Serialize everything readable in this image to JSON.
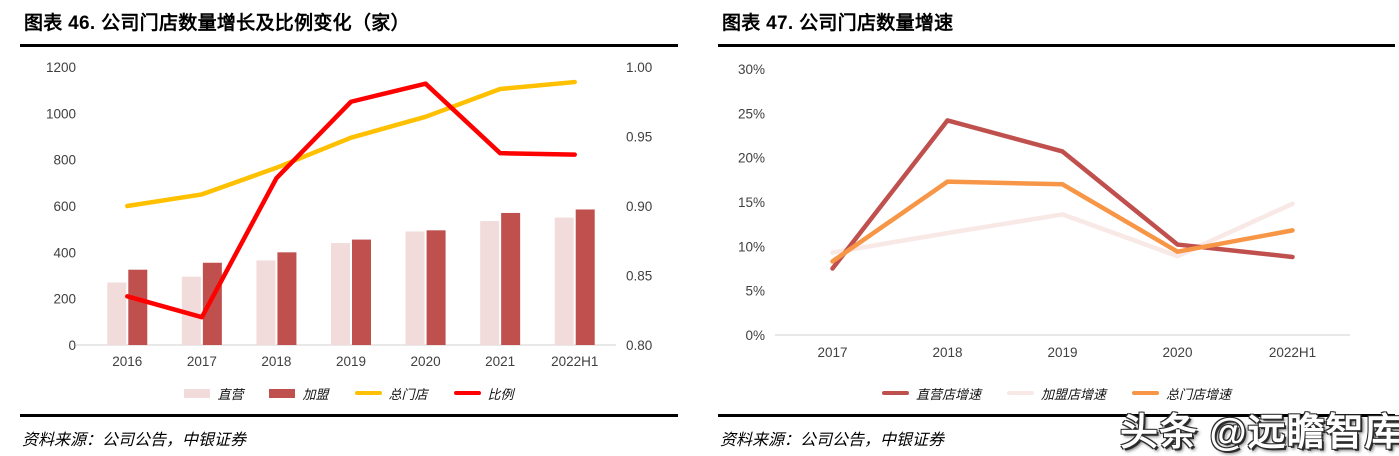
{
  "watermark": "头条 @远瞻智库",
  "chart_data": [
    {
      "id": "fig46",
      "type": "combo_bar_line",
      "title": "图表 46. 公司门店数量增长及比例变化（家）",
      "source": "资料来源：公司公告，中银证券",
      "grid": false,
      "legend_position": "bottom",
      "categories": [
        "2016",
        "2017",
        "2018",
        "2019",
        "2020",
        "2021",
        "2022H1"
      ],
      "bar_series": [
        {
          "name": "直营",
          "color": "#f2dcdb",
          "values": [
            270,
            295,
            365,
            440,
            490,
            535,
            550
          ]
        },
        {
          "name": "加盟",
          "color": "#c0504d",
          "values": [
            325,
            355,
            400,
            455,
            495,
            570,
            585
          ]
        }
      ],
      "line_series": [
        {
          "name": "总门店",
          "color": "#ffc000",
          "axis": "left",
          "values": [
            600,
            650,
            765,
            895,
            985,
            1105,
            1135
          ]
        },
        {
          "name": "比例",
          "color": "#ff0000",
          "axis": "right",
          "values": [
            0.835,
            0.82,
            0.92,
            0.975,
            0.988,
            0.938,
            0.937
          ]
        }
      ],
      "left_axis": {
        "min": 0,
        "max": 1200,
        "tick_values": [
          0,
          200,
          400,
          600,
          800,
          1000,
          1200
        ],
        "tick_labels": [
          "0",
          "200",
          "400",
          "600",
          "800",
          "1000",
          "1200"
        ]
      },
      "right_axis": {
        "min": 0.8,
        "max": 1.0,
        "tick_values": [
          0.8,
          0.85,
          0.9,
          0.95,
          1.0
        ],
        "tick_labels": [
          "0.80",
          "0.85",
          "0.90",
          "0.95",
          "1.00"
        ]
      }
    },
    {
      "id": "fig47",
      "type": "line",
      "title": "图表 47. 公司门店数量增速",
      "source": "资料来源：公司公告，中银证券",
      "grid": false,
      "legend_position": "bottom",
      "categories": [
        "2017",
        "2018",
        "2019",
        "2020",
        "2022H1"
      ],
      "series": [
        {
          "name": "直营店增速",
          "color": "#c0504d",
          "values": [
            7.5,
            24.2,
            20.7,
            10.2,
            8.8
          ]
        },
        {
          "name": "加盟店增速",
          "color": "#f8e8e6",
          "values": [
            9.3,
            11.5,
            13.6,
            8.9,
            14.8
          ]
        },
        {
          "name": "总门店增速",
          "color": "#f79646",
          "values": [
            8.3,
            17.3,
            17.0,
            9.4,
            11.8
          ]
        }
      ],
      "draw_order": [
        1,
        0,
        2
      ],
      "y_axis": {
        "min": 0,
        "max": 30,
        "unit": "%",
        "tick_values": [
          0,
          5,
          10,
          15,
          20,
          25,
          30
        ],
        "tick_labels": [
          "0%",
          "5%",
          "10%",
          "15%",
          "20%",
          "25%",
          "30%"
        ]
      }
    }
  ]
}
